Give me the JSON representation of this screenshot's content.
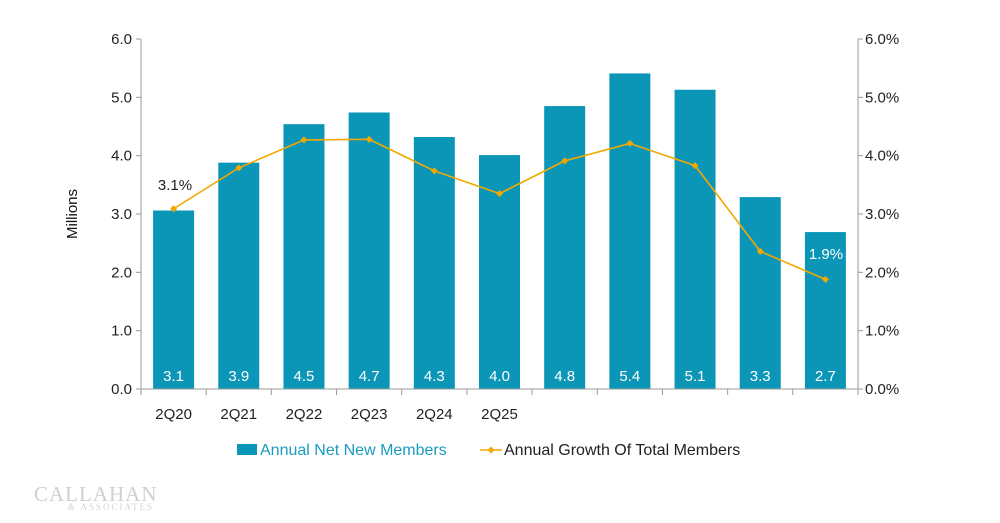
{
  "colors": {
    "bar": "#0b96b8",
    "line": "#f2a800",
    "axis": "#9a9a9a"
  },
  "chart_data": {
    "type": "bar+line",
    "title": "",
    "x_tick_labels": [
      "2Q20",
      "2Q21",
      "2Q22",
      "2Q23",
      "2Q24",
      "2Q25"
    ],
    "series": [
      {
        "name": "Annual Net New Members",
        "kind": "bar",
        "axis": "left",
        "values": [
          3.06,
          3.88,
          4.54,
          4.74,
          4.32,
          4.01,
          4.85,
          5.41,
          5.13,
          3.29,
          2.69
        ],
        "data_labels": [
          "3.1",
          "3.9",
          "4.5",
          "4.7",
          "4.3",
          "4.0",
          "4.8",
          "5.4",
          "5.1",
          "3.3",
          "2.7"
        ]
      },
      {
        "name": "Annual Growth Of Total Members",
        "kind": "line",
        "axis": "right",
        "values": [
          3.09,
          3.79,
          4.27,
          4.28,
          3.74,
          3.35,
          3.91,
          4.21,
          3.83,
          2.36,
          1.88
        ]
      }
    ],
    "annotations": [
      "3.1%",
      "1.9%"
    ],
    "ylabel_left": "Millions",
    "y_left": {
      "lim": [
        0,
        6
      ],
      "ticks": [
        "0.0",
        "1.0",
        "2.0",
        "3.0",
        "4.0",
        "5.0",
        "6.0"
      ]
    },
    "y_right": {
      "lim": [
        0,
        6
      ],
      "ticks": [
        "0.0%",
        "1.0%",
        "2.0%",
        "3.0%",
        "4.0%",
        "5.0%",
        "6.0%"
      ]
    },
    "legend": {
      "position": "bottom-center"
    }
  },
  "logo": {
    "name": "CALLAHAN",
    "sub": "& ASSOCIATES"
  }
}
